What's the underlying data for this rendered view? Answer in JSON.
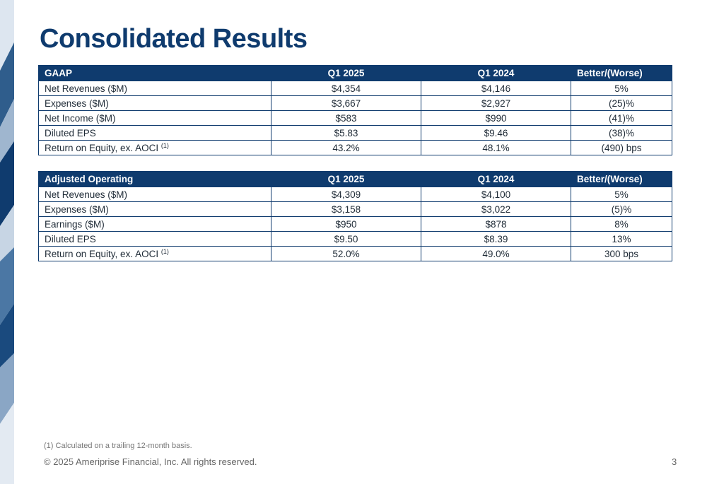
{
  "slide": {
    "title": "Consolidated Results",
    "page_number": "3"
  },
  "tables": {
    "gaap": {
      "headers": [
        "GAAP",
        "Q1 2025",
        "Q1 2024",
        "Better/(Worse)"
      ],
      "rows": [
        {
          "label": "Net Revenues ($M)",
          "sup": "",
          "q1_2025": "$4,354",
          "q1_2024": "$4,146",
          "better_worse": "5%"
        },
        {
          "label": "Expenses ($M)",
          "sup": "",
          "q1_2025": "$3,667",
          "q1_2024": "$2,927",
          "better_worse": "(25)%"
        },
        {
          "label": "Net Income ($M)",
          "sup": "",
          "q1_2025": "$583",
          "q1_2024": "$990",
          "better_worse": "(41)%"
        },
        {
          "label": "Diluted EPS",
          "sup": "",
          "q1_2025": "$5.83",
          "q1_2024": "$9.46",
          "better_worse": "(38)%"
        },
        {
          "label": "Return on Equity, ex. AOCI",
          "sup": "(1)",
          "q1_2025": "43.2%",
          "q1_2024": "48.1%",
          "better_worse": "(490) bps"
        }
      ]
    },
    "adjusted": {
      "headers": [
        "Adjusted Operating",
        "Q1 2025",
        "Q1 2024",
        "Better/(Worse)"
      ],
      "rows": [
        {
          "label": "Net Revenues ($M)",
          "sup": "",
          "q1_2025": "$4,309",
          "q1_2024": "$4,100",
          "better_worse": "5%"
        },
        {
          "label": "Expenses ($M)",
          "sup": "",
          "q1_2025": "$3,158",
          "q1_2024": "$3,022",
          "better_worse": "(5)%"
        },
        {
          "label": "Earnings ($M)",
          "sup": "",
          "q1_2025": "$950",
          "q1_2024": "$878",
          "better_worse": "8%"
        },
        {
          "label": "Diluted EPS",
          "sup": "",
          "q1_2025": "$9.50",
          "q1_2024": "$8.39",
          "better_worse": "13%"
        },
        {
          "label": "Return on Equity, ex. AOCI",
          "sup": "(1)",
          "q1_2025": "52.0%",
          "q1_2024": "49.0%",
          "better_worse": "300 bps"
        }
      ]
    }
  },
  "footer": {
    "footnote": "(1) Calculated on a trailing 12-month basis.",
    "copyright": "© 2025 Ameriprise Financial, Inc. All rights reserved."
  },
  "colors": {
    "header_bg": "#0f3b6e",
    "title": "#0f3b6e",
    "border": "#0f3b6e"
  }
}
